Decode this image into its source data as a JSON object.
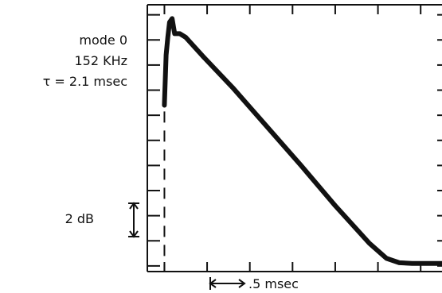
{
  "annotation": {
    "mode": "mode 0",
    "frequency": "152 KHz",
    "tau": "τ = 2.1 msec"
  },
  "scale_markers": {
    "db": "2 dB",
    "time": ".5 msec"
  },
  "chart_data": {
    "type": "line",
    "title": "",
    "xlabel": "",
    "ylabel": "",
    "x_unit": "msec",
    "y_unit": "dB",
    "x_scale_bar_msec": 0.5,
    "y_scale_bar_db": 2,
    "series": [
      {
        "values": [
          {
            "x": 0.0,
            "y": 12.8
          },
          {
            "x": 0.02,
            "y": 16.8
          },
          {
            "x": 0.04,
            "y": 18.2
          },
          {
            "x": 0.06,
            "y": 19.4
          },
          {
            "x": 0.09,
            "y": 19.7
          },
          {
            "x": 0.12,
            "y": 18.5
          },
          {
            "x": 0.18,
            "y": 18.5
          },
          {
            "x": 0.25,
            "y": 18.2
          },
          {
            "x": 0.45,
            "y": 16.7
          },
          {
            "x": 0.8,
            "y": 14.2
          },
          {
            "x": 1.2,
            "y": 11.1
          },
          {
            "x": 1.6,
            "y": 8.0
          },
          {
            "x": 2.0,
            "y": 4.8
          },
          {
            "x": 2.4,
            "y": 1.8
          },
          {
            "x": 2.6,
            "y": 0.6
          },
          {
            "x": 2.75,
            "y": 0.25
          },
          {
            "x": 2.9,
            "y": 0.2
          },
          {
            "x": 3.05,
            "y": 0.2
          },
          {
            "x": 3.25,
            "y": 0.2
          }
        ]
      }
    ],
    "trigger_marker_x": 0,
    "xlim": [
      -0.2,
      3.25
    ],
    "ylim": [
      -0.45,
      20.8
    ],
    "grid": false
  }
}
